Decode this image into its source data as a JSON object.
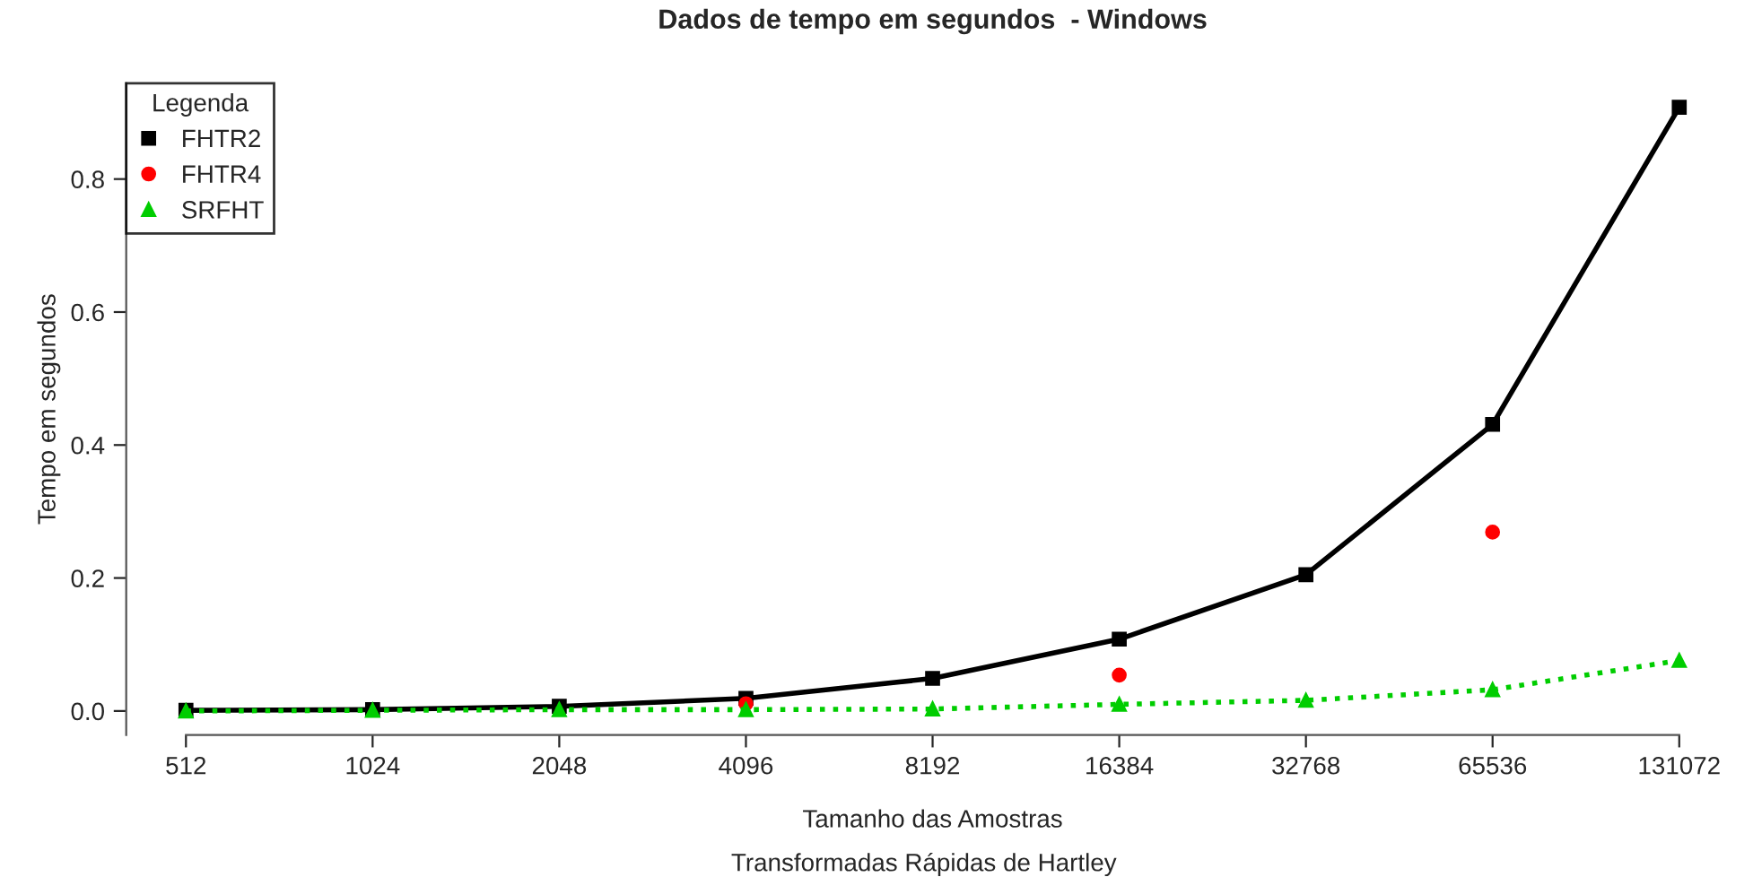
{
  "chart_data": {
    "type": "line",
    "title": "Dados de tempo em segundos  - Windows",
    "subtitle": "Transformadas Rápidas de Hartley",
    "xlabel": "Tamanho das Amostras",
    "ylabel": "Tempo em segundos",
    "categories": [
      "512",
      "1024",
      "2048",
      "4096",
      "8192",
      "16384",
      "32768",
      "65536",
      "131072"
    ],
    "series": [
      {
        "name": "FHTR2",
        "color": "#000000",
        "marker": "square",
        "line_style": "solid",
        "values": [
          0.001,
          0.002,
          0.007,
          0.019,
          0.049,
          0.108,
          0.205,
          0.431,
          0.908
        ]
      },
      {
        "name": "FHTR4",
        "type": "scatter",
        "color": "#ff0000",
        "marker": "circle",
        "values": [
          null,
          null,
          null,
          0.011,
          null,
          0.054,
          null,
          0.269,
          null
        ]
      },
      {
        "name": "SRFHT",
        "type": "line",
        "color": "#00cd00",
        "marker": "triangle",
        "line_style": "dotted",
        "values": [
          0.0,
          0.001,
          0.002,
          0.002,
          0.003,
          0.01,
          0.016,
          0.032,
          0.076
        ]
      }
    ],
    "ylim": [
      -0.036,
      0.944
    ],
    "yticks": [
      {
        "value": 0,
        "label": "0.0"
      },
      0.2,
      0.4,
      0.6,
      0.8
    ],
    "legend_title": "Legenda",
    "legend": "top left",
    "grid": false
  }
}
